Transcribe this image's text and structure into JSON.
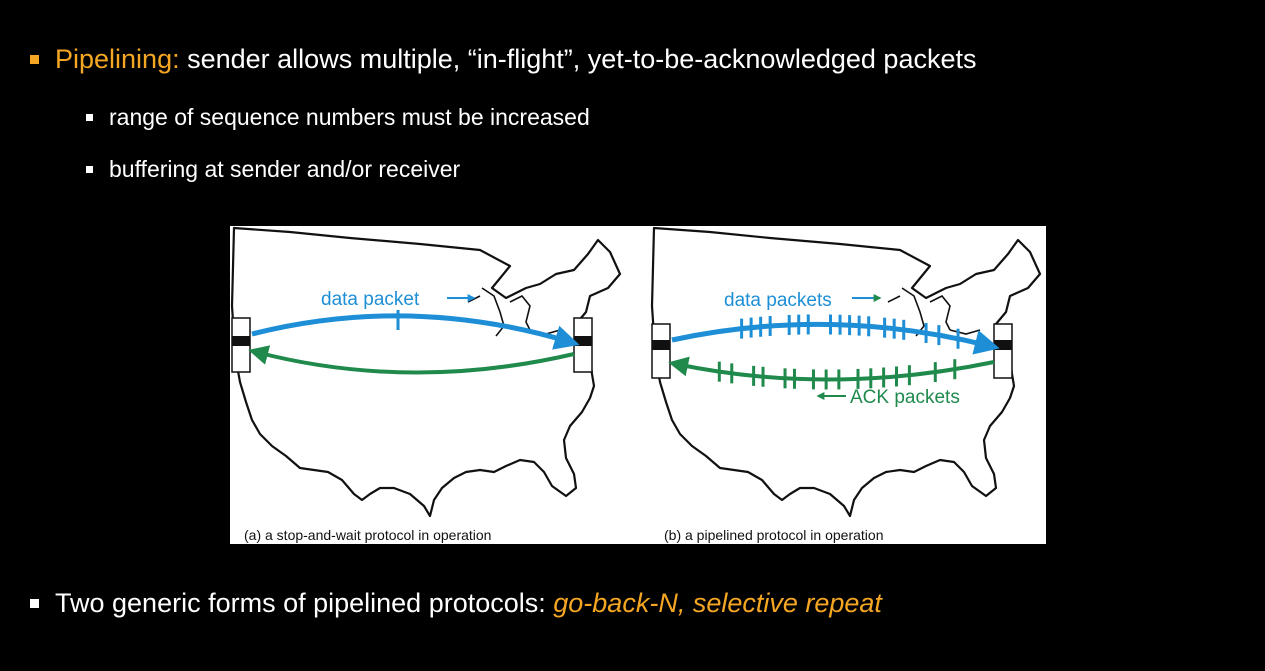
{
  "slide": {
    "main_bullet": {
      "term": "Pipelining",
      "separator": ":",
      "text": " sender allows multiple, “in-flight”, yet-to-be-acknowledged packets"
    },
    "sub_bullets": [
      "range of sequence numbers must be increased",
      "buffering at sender and/or receiver"
    ],
    "bottom_bullet": {
      "text": "Two generic forms of pipelined protocols",
      "separator": ":",
      "highlight": " go-back-N, selective repeat"
    }
  },
  "figure": {
    "panel_a": {
      "data_label": "data packet",
      "caption": "(a) a stop-and-wait protocol in operation"
    },
    "panel_b": {
      "data_label": "data packets",
      "ack_label": "ACK packets",
      "caption": "(b) a pipelined protocol in operation"
    },
    "colors": {
      "data": "#1e8fd6",
      "ack": "#1f8a4c",
      "accent": "#f5a623"
    }
  }
}
